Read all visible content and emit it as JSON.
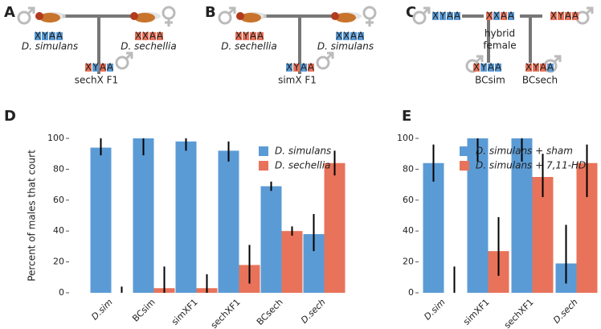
{
  "diagrams": [
    {
      "letter": "A",
      "parents": [
        {
          "label": "D. simulans",
          "sex": "male",
          "genotype": [
            {
              "letter": "X",
              "color": "#5b9bd5"
            },
            {
              "letter": "Y",
              "color": "#5b9bd5"
            },
            {
              "letter": "A",
              "color": "#5b9bd5"
            },
            {
              "letter": "A",
              "color": "#5b9bd5"
            }
          ]
        },
        {
          "label": "D. sechellia",
          "sex": "female",
          "genotype": [
            {
              "letter": "X",
              "color": "#e8735a"
            },
            {
              "letter": "X",
              "color": "#e8735a"
            },
            {
              "letter": "A",
              "color": "#e8735a"
            },
            {
              "letter": "A",
              "color": "#e8735a"
            }
          ]
        }
      ],
      "offspring": [
        {
          "label": "sechX F1",
          "sex": "male",
          "genotype": [
            {
              "letter": "X",
              "color": "#e8735a"
            },
            {
              "letter": "Y",
              "color": "#5b9bd5"
            },
            {
              "letter": "A",
              "color": "#e8735a"
            },
            {
              "letter": "A",
              "color": "#5b9bd5"
            }
          ]
        }
      ]
    },
    {
      "letter": "B",
      "parents": [
        {
          "label": "D. sechellia",
          "sex": "male",
          "genotype": [
            {
              "letter": "X",
              "color": "#e8735a"
            },
            {
              "letter": "Y",
              "color": "#e8735a"
            },
            {
              "letter": "A",
              "color": "#e8735a"
            },
            {
              "letter": "A",
              "color": "#e8735a"
            }
          ]
        },
        {
          "label": "D. simulans",
          "sex": "female",
          "genotype": [
            {
              "letter": "X",
              "color": "#5b9bd5"
            },
            {
              "letter": "X",
              "color": "#5b9bd5"
            },
            {
              "letter": "A",
              "color": "#5b9bd5"
            },
            {
              "letter": "A",
              "color": "#5b9bd5"
            }
          ]
        }
      ],
      "offspring": [
        {
          "label": "simX F1",
          "sex": "male",
          "genotype": [
            {
              "letter": "X",
              "color": "#5b9bd5"
            },
            {
              "letter": "Y",
              "color": "#e8735a"
            },
            {
              "letter": "A",
              "color": "#5b9bd5"
            },
            {
              "letter": "A",
              "color": "#e8735a"
            }
          ]
        }
      ]
    },
    {
      "letter": "C",
      "parents": [
        {
          "sex": "male",
          "genotype": [
            {
              "letter": "X",
              "color": "#5b9bd5"
            },
            {
              "letter": "Y",
              "color": "#5b9bd5"
            },
            {
              "letter": "A",
              "color": "#5b9bd5"
            },
            {
              "letter": "A",
              "color": "#5b9bd5"
            }
          ]
        },
        {
          "label_lines": [
            "hybrid",
            "female"
          ],
          "genotype": [
            {
              "letter": "X",
              "color": "#e8735a"
            },
            {
              "letter": "X",
              "color": "#5b9bd5"
            },
            {
              "letter": "A",
              "color": "#e8735a"
            },
            {
              "letter": "A",
              "color": "#5b9bd5"
            }
          ]
        },
        {
          "sex": "male",
          "genotype": [
            {
              "letter": "X",
              "color": "#e8735a"
            },
            {
              "letter": "Y",
              "color": "#e8735a"
            },
            {
              "letter": "A",
              "color": "#e8735a"
            },
            {
              "letter": "A",
              "color": "#e8735a"
            }
          ]
        }
      ],
      "offspring": [
        {
          "label": "BCsim",
          "sex": "male",
          "genotype": [
            {
              "letter": "X",
              "color": "#e8735a"
            },
            {
              "letter": "Y",
              "color": "#5b9bd5"
            },
            {
              "letter": "A",
              "color": "#5b9bd5"
            },
            {
              "letter": "A",
              "color": "#5b9bd5"
            }
          ]
        },
        {
          "label": "BCsech",
          "sex": "male",
          "genotype": [
            {
              "letter": "X",
              "color": "#e8735a"
            },
            {
              "letter": "Y",
              "color": "#e8735a"
            },
            {
              "letter": "A",
              "color": "#e8735a"
            },
            {
              "letter": "A",
              "color": "#5b9bd5"
            }
          ]
        }
      ]
    }
  ],
  "chart_data": [
    {
      "type": "bar",
      "panel": "D",
      "y_label": "Percent of males that court",
      "categories": [
        "D.sim",
        "BCsim",
        "simXF1",
        "sechXF1",
        "BCsech",
        "D.sech"
      ],
      "series": [
        {
          "name": "D. simulans",
          "color": "#5b9bd5",
          "values": [
            94,
            100,
            98,
            92,
            69,
            38
          ],
          "err_low": [
            89,
            89,
            92,
            85,
            66,
            27
          ],
          "err_high": [
            100,
            100,
            100,
            98,
            72,
            51
          ]
        },
        {
          "name": "D. sechellia",
          "color": "#e8735a",
          "values": [
            0,
            3,
            3,
            18,
            40,
            84
          ],
          "err_low": [
            0,
            0,
            0,
            6,
            37,
            76
          ],
          "err_high": [
            4,
            17,
            12,
            31,
            43,
            92
          ]
        }
      ],
      "ylim": [
        0,
        100
      ],
      "yticks": [
        0,
        20,
        40,
        60,
        80,
        100
      ]
    },
    {
      "type": "bar",
      "panel": "E",
      "categories": [
        "D.sim",
        "simXF1",
        "sechXF1",
        "D.sech"
      ],
      "series": [
        {
          "name": "D. simulans + sham",
          "color": "#5b9bd5",
          "values": [
            84,
            100,
            100,
            19
          ],
          "err_low": [
            72,
            85,
            85,
            6
          ],
          "err_high": [
            96,
            100,
            100,
            44
          ]
        },
        {
          "name": "D. simulans + 7,11-HD",
          "color": "#e8735a",
          "values": [
            0,
            27,
            75,
            84
          ],
          "err_low": [
            0,
            11,
            62,
            62
          ],
          "err_high": [
            17,
            49,
            90,
            96
          ]
        }
      ],
      "ylim": [
        0,
        100
      ],
      "yticks": [
        0,
        20,
        40,
        60,
        80,
        100
      ]
    }
  ]
}
